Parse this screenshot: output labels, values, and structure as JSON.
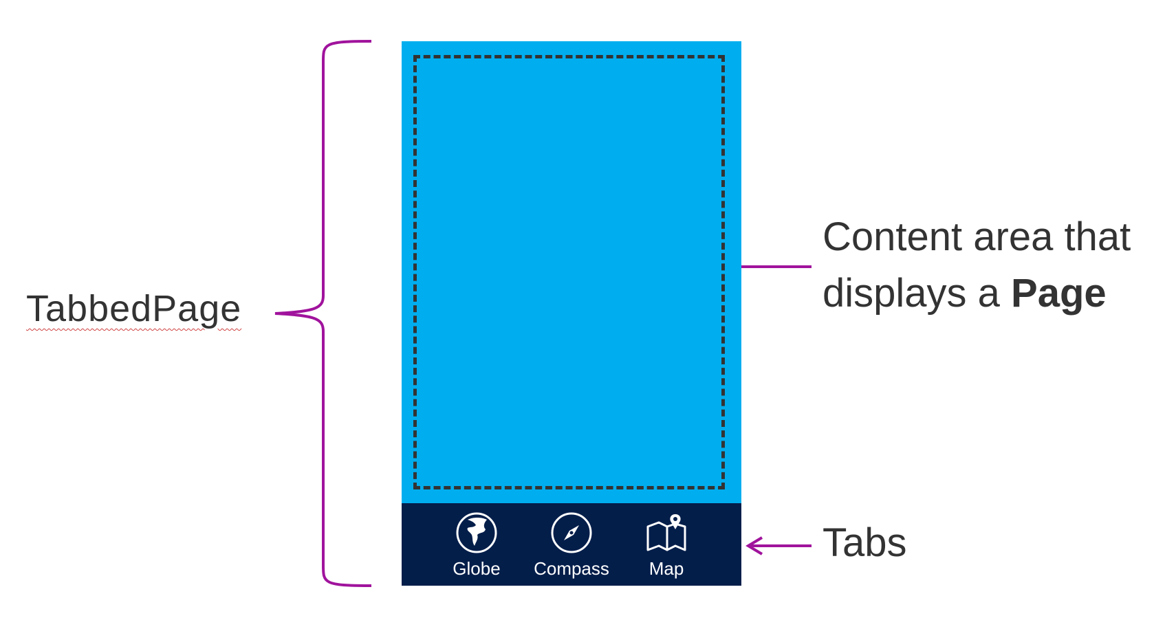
{
  "left_label": "TabbedPage",
  "content_callout": {
    "line1": "Content area that",
    "line2_prefix": "displays a ",
    "line2_bold": "Page"
  },
  "tabs_callout": "Tabs",
  "tabs": [
    {
      "label": "Globe",
      "icon": "globe-icon"
    },
    {
      "label": "Compass",
      "icon": "compass-icon"
    },
    {
      "label": "Map",
      "icon": "map-icon"
    }
  ],
  "colors": {
    "content_bg": "#00aeef",
    "tabbar_bg": "#041e4a",
    "annotation": "#a0139c",
    "text": "#333333"
  }
}
